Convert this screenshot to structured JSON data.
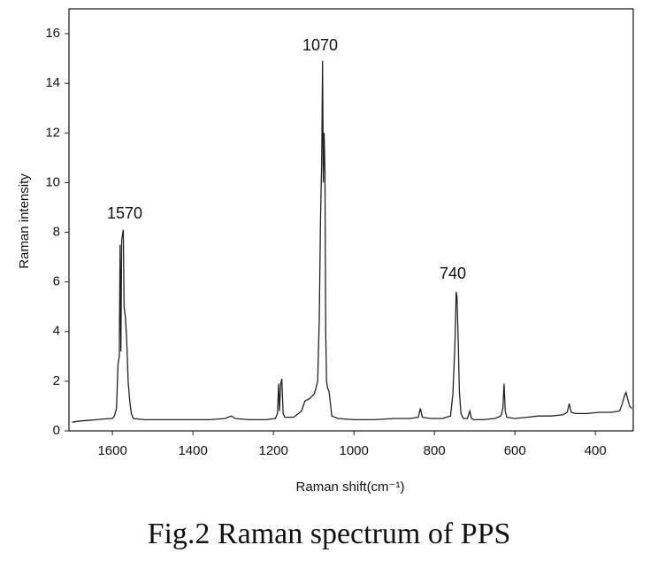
{
  "chart_data": {
    "type": "line",
    "x_label": "Raman shift(cm⁻¹)",
    "y_label": "Raman intensity",
    "caption": "Fig.2 Raman spectrum of PPS",
    "annotations": [
      "1570",
      "1070",
      "740"
    ],
    "color": "#222222",
    "xlim": [
      1708,
      306
    ],
    "ylim": [
      0,
      17
    ],
    "xticks": [
      1600,
      1400,
      1200,
      1000,
      800,
      600,
      400
    ],
    "yticks": [
      0,
      2,
      4,
      6,
      8,
      10,
      12,
      14,
      16
    ],
    "x": [
      1700,
      1680,
      1660,
      1640,
      1620,
      1600,
      1595,
      1590,
      1586,
      1583,
      1581,
      1579,
      1577,
      1575,
      1573,
      1571,
      1568,
      1565,
      1561,
      1557,
      1553,
      1548,
      1520,
      1480,
      1440,
      1400,
      1360,
      1320,
      1305,
      1295,
      1260,
      1220,
      1195,
      1190,
      1187,
      1185,
      1182,
      1179,
      1176,
      1172,
      1150,
      1130,
      1122,
      1110,
      1098,
      1090,
      1086,
      1083,
      1080,
      1078,
      1076,
      1074,
      1072,
      1070,
      1068,
      1065,
      1062,
      1059,
      1055,
      1040,
      1000,
      950,
      900,
      860,
      840,
      835,
      830,
      810,
      780,
      760,
      754,
      749,
      746,
      744,
      741,
      738,
      734,
      728,
      718,
      712,
      708,
      702,
      680,
      650,
      635,
      630,
      627,
      624,
      620,
      600,
      570,
      540,
      510,
      480,
      470,
      465,
      460,
      450,
      420,
      390,
      360,
      340,
      333,
      328,
      324,
      320,
      315,
      310
    ],
    "values": [
      0.35,
      0.4,
      0.42,
      0.45,
      0.48,
      0.5,
      0.6,
      0.9,
      2.7,
      3.0,
      7.5,
      3.2,
      7.7,
      7.9,
      8.1,
      5.0,
      4.6,
      3.8,
      2.0,
      1.2,
      0.7,
      0.5,
      0.45,
      0.45,
      0.45,
      0.45,
      0.45,
      0.5,
      0.6,
      0.5,
      0.45,
      0.45,
      0.5,
      0.7,
      1.9,
      0.8,
      1.9,
      2.1,
      0.7,
      0.55,
      0.55,
      0.8,
      1.2,
      1.3,
      1.5,
      2.0,
      4.5,
      8.5,
      11.0,
      14.9,
      10.0,
      12.0,
      10.5,
      4.0,
      2.0,
      1.7,
      1.6,
      1.2,
      0.6,
      0.5,
      0.45,
      0.45,
      0.5,
      0.5,
      0.55,
      0.9,
      0.55,
      0.5,
      0.5,
      0.6,
      1.5,
      3.5,
      5.6,
      5.4,
      3.8,
      1.6,
      0.7,
      0.5,
      0.5,
      0.8,
      0.5,
      0.45,
      0.45,
      0.5,
      0.6,
      0.9,
      1.9,
      0.8,
      0.55,
      0.5,
      0.55,
      0.6,
      0.6,
      0.65,
      0.75,
      1.1,
      0.75,
      0.7,
      0.7,
      0.75,
      0.75,
      0.8,
      1.1,
      1.4,
      1.55,
      1.3,
      1.0,
      0.9
    ]
  }
}
